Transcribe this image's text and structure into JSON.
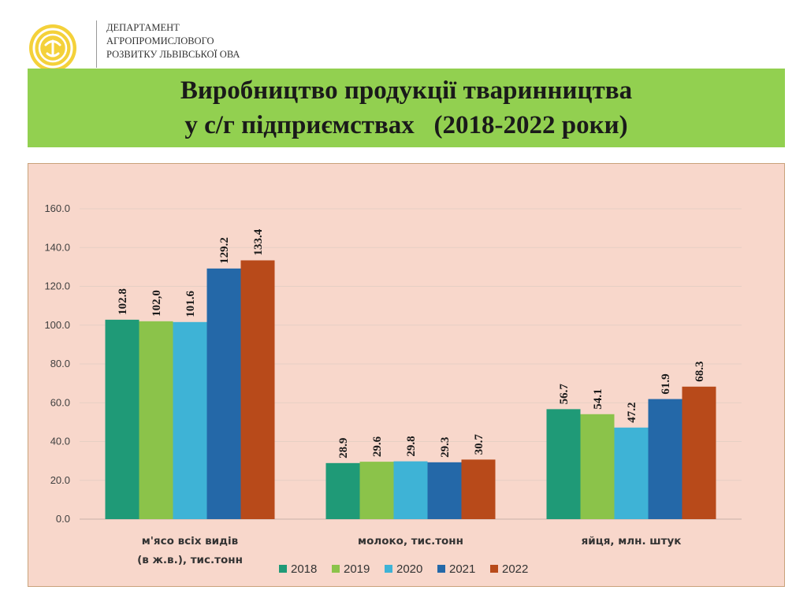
{
  "header": {
    "dept_lines": [
      "ДЕПАРТАМЕНТ",
      "АГРОПРОМИСЛОВОГО",
      "РОЗВИТКУ ЛЬВІВСЬКОЇ ОВА"
    ]
  },
  "banner": {
    "title_line1": "Виробництво продукції тваринництва",
    "title_line2": "у с/г підприємствах   (2018-2022 роки)"
  },
  "chart_data": {
    "type": "bar",
    "categories": [
      [
        "м'ясо всіх видів",
        "(в ж.в.), тис.тонн"
      ],
      [
        "молоко, тис.тонн"
      ],
      [
        "яйця, млн. штук"
      ]
    ],
    "series": [
      {
        "name": "2018",
        "color": "#1f9a77",
        "values": [
          102.8,
          28.9,
          56.7
        ],
        "labels": [
          "102.8",
          "28.9",
          "56.7"
        ]
      },
      {
        "name": "2019",
        "color": "#8bc34a",
        "values": [
          102.0,
          29.6,
          54.1
        ],
        "labels": [
          "102,0",
          "29.6",
          "54.1"
        ]
      },
      {
        "name": "2020",
        "color": "#3eb3d6",
        "values": [
          101.6,
          29.8,
          47.2
        ],
        "labels": [
          "101.6",
          "29.8",
          "47.2"
        ]
      },
      {
        "name": "2021",
        "color": "#2468a8",
        "values": [
          129.2,
          29.3,
          61.9
        ],
        "labels": [
          "129.2",
          "29.3",
          "61.9"
        ]
      },
      {
        "name": "2022",
        "color": "#b84a1a",
        "values": [
          133.4,
          30.7,
          68.3
        ],
        "labels": [
          "133.4",
          "30.7",
          "68.3"
        ]
      }
    ],
    "yticks": [
      "0.0",
      "20.0",
      "40.0",
      "60.0",
      "80.0",
      "100.0",
      "120.0",
      "140.0",
      "160.0"
    ],
    "ylim": [
      0,
      160
    ],
    "grid": true,
    "legend_position": "bottom"
  }
}
